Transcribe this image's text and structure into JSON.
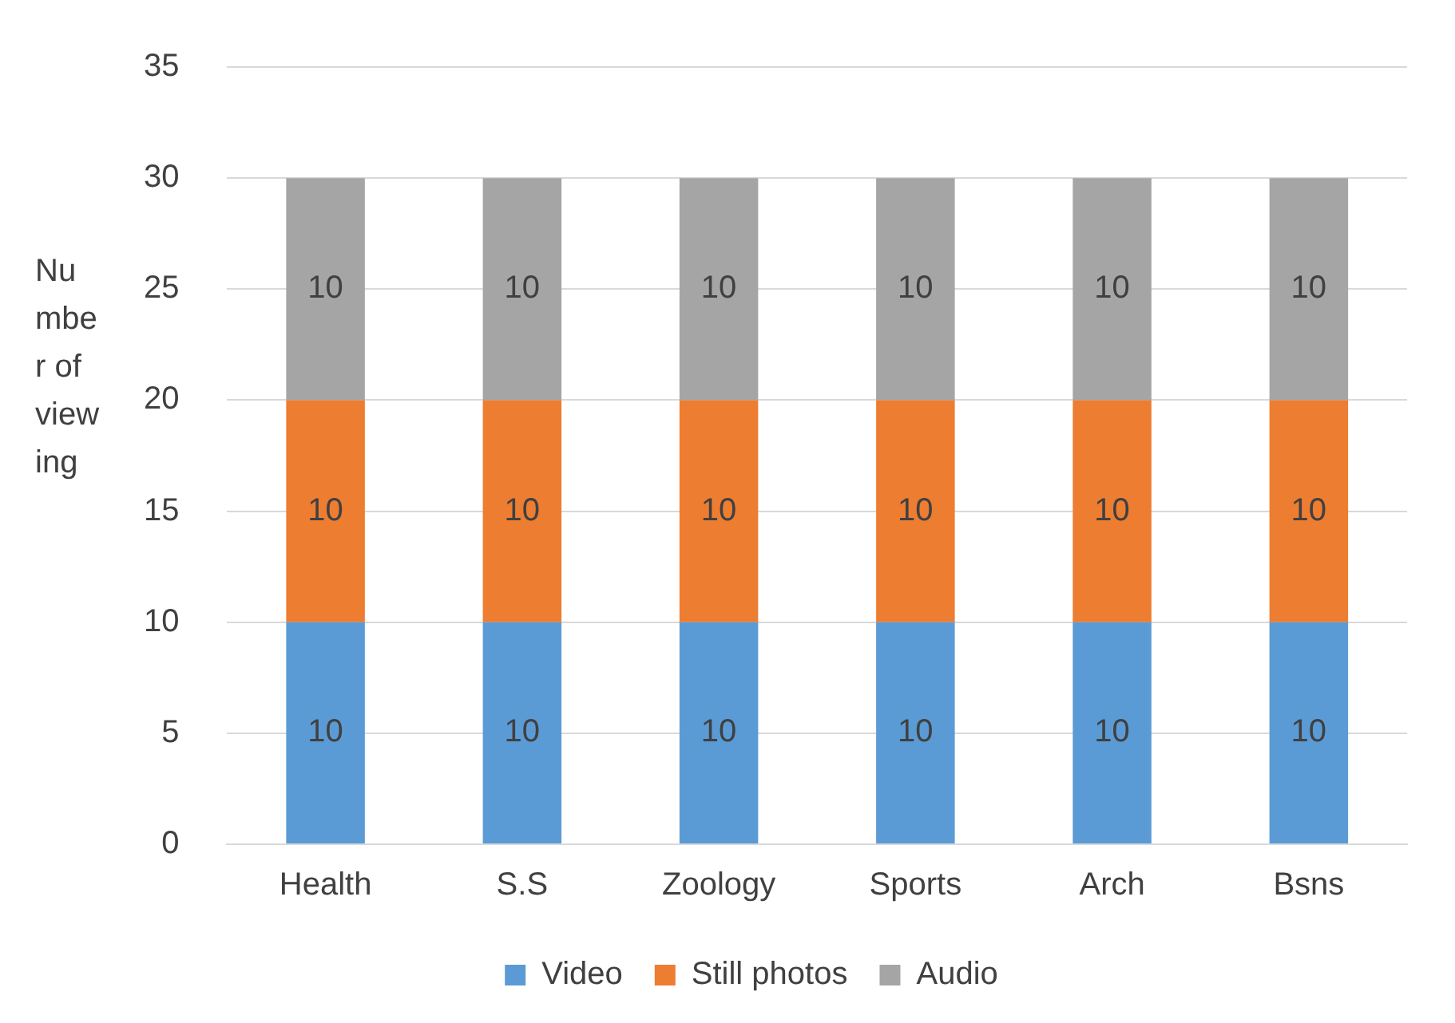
{
  "chart_data": {
    "type": "bar",
    "stacked": true,
    "ylabel": "Number of viewing",
    "categories": [
      "Health",
      "S.S",
      "Zoology",
      "Sports",
      "Arch",
      "Bsns"
    ],
    "series": [
      {
        "name": "Video",
        "color": "#5b9bd5",
        "values": [
          10,
          10,
          10,
          10,
          10,
          10
        ]
      },
      {
        "name": "Still photos",
        "color": "#ed7d31",
        "values": [
          10,
          10,
          10,
          10,
          10,
          10
        ]
      },
      {
        "name": "Audio",
        "color": "#a5a5a5",
        "values": [
          10,
          10,
          10,
          10,
          10,
          10
        ]
      }
    ],
    "ylim": [
      0,
      35
    ],
    "yticks": [
      0,
      5,
      10,
      15,
      20,
      25,
      30,
      35
    ],
    "grid": "y",
    "legend": "bottom",
    "data_labels": true
  }
}
